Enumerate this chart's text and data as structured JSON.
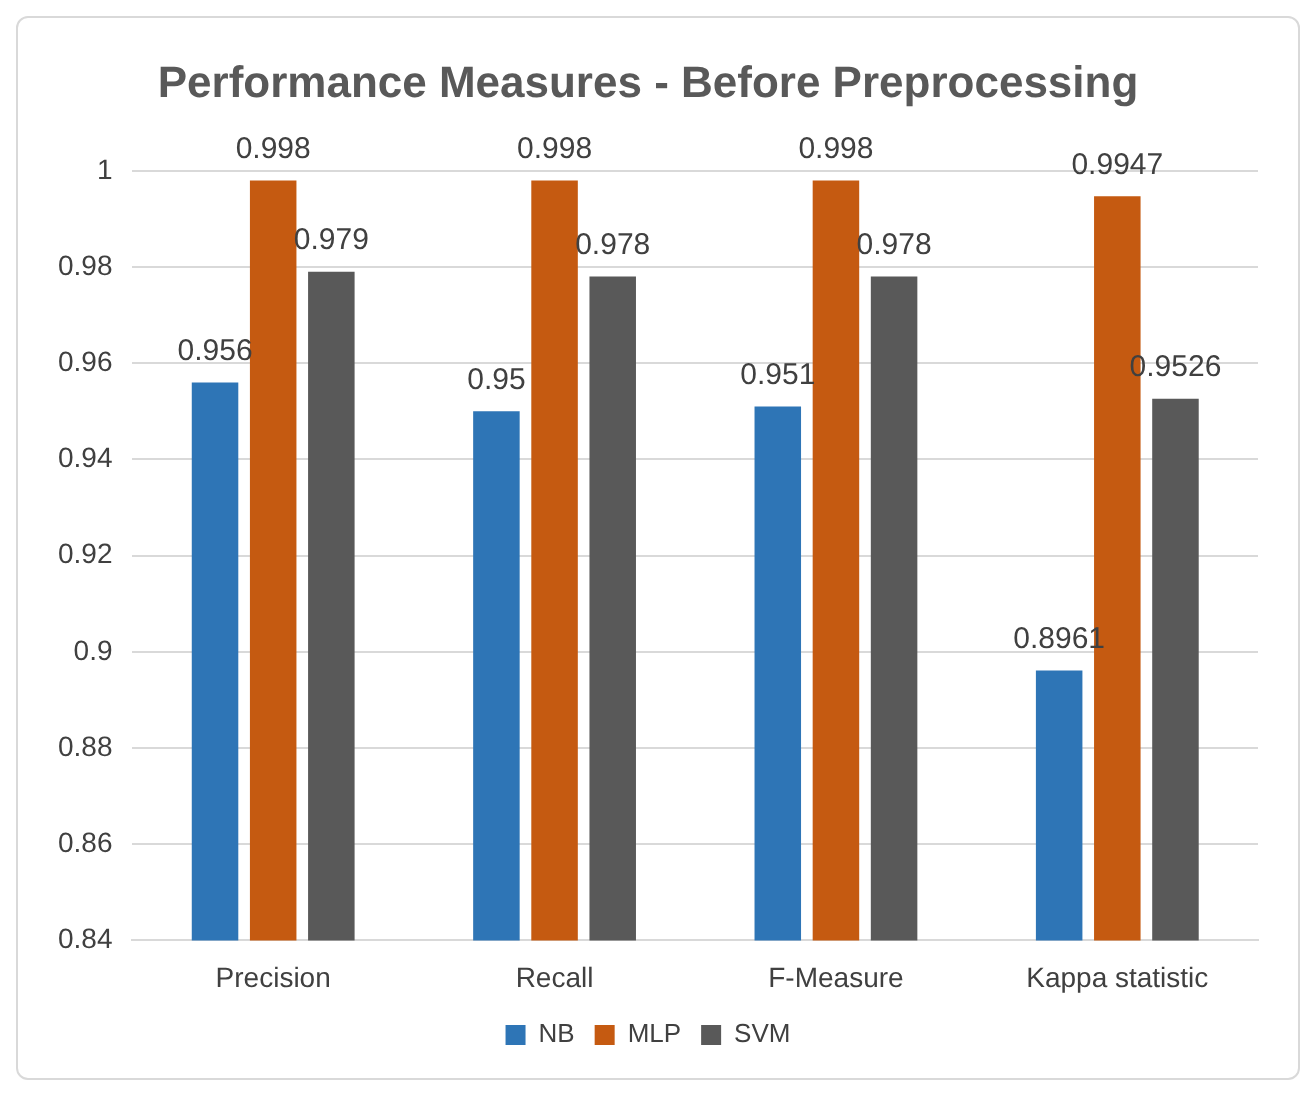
{
  "chart_data": {
    "type": "bar",
    "title": "Performance Measures - Before Preprocessing",
    "categories": [
      "Precision",
      "Recall",
      "F-Measure",
      "Kappa statistic"
    ],
    "series": [
      {
        "name": "NB",
        "color": "#2e75b6",
        "values": [
          0.956,
          0.95,
          0.951,
          0.8961
        ]
      },
      {
        "name": "MLP",
        "color": "#c55a11",
        "values": [
          0.998,
          0.998,
          0.998,
          0.9947
        ]
      },
      {
        "name": "SVM",
        "color": "#595959",
        "values": [
          0.979,
          0.978,
          0.978,
          0.9526
        ]
      }
    ],
    "ylim": [
      0.84,
      1
    ],
    "yticks": [
      0.84,
      0.86,
      0.88,
      0.9,
      0.92,
      0.94,
      0.96,
      0.98,
      1
    ],
    "grid": "y",
    "legend": "bottom",
    "data_labels": true
  }
}
